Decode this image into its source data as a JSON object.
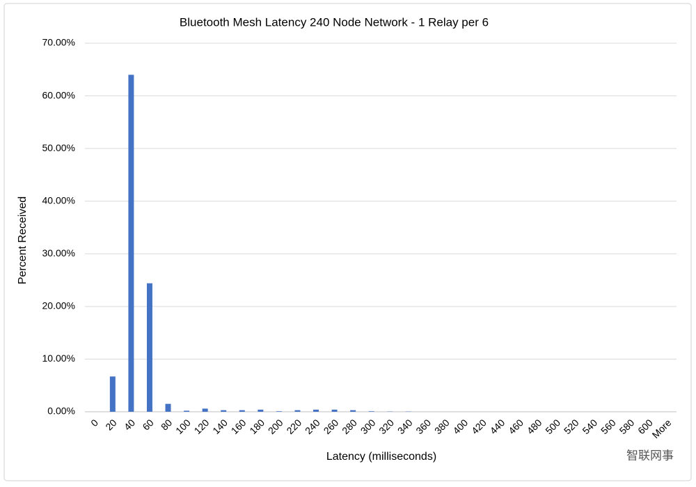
{
  "chart_data": {
    "type": "bar",
    "title": "Bluetooth Mesh Latency 240 Node Network - 1 Relay per 6",
    "x_label": "Latency (milliseconds)",
    "y_label": "Percent Received",
    "categories": [
      "0",
      "20",
      "40",
      "60",
      "80",
      "100",
      "120",
      "140",
      "160",
      "180",
      "200",
      "220",
      "240",
      "260",
      "280",
      "300",
      "320",
      "340",
      "360",
      "380",
      "400",
      "420",
      "440",
      "460",
      "480",
      "500",
      "520",
      "540",
      "560",
      "580",
      "600",
      "More"
    ],
    "values": [
      0,
      6.7,
      64.0,
      24.4,
      1.5,
      0.2,
      0.6,
      0.3,
      0.3,
      0.4,
      0.1,
      0.3,
      0.4,
      0.4,
      0.3,
      0.1,
      0.05,
      0.05,
      0,
      0,
      0,
      0,
      0,
      0,
      0,
      0,
      0,
      0,
      0,
      0,
      0,
      0
    ],
    "color": "#4472c4",
    "ylim": [
      0,
      70
    ],
    "yticks": [
      {
        "value": 0,
        "label": "0.00%"
      },
      {
        "value": 10,
        "label": "10.00%"
      },
      {
        "value": 20,
        "label": "20.00%"
      },
      {
        "value": 30,
        "label": "30.00%"
      },
      {
        "value": 40,
        "label": "40.00%"
      },
      {
        "value": 50,
        "label": "50.00%"
      },
      {
        "value": 60,
        "label": "60.00%"
      },
      {
        "value": 70,
        "label": "70.00%"
      }
    ],
    "grid": true
  },
  "watermark": "智联网事"
}
